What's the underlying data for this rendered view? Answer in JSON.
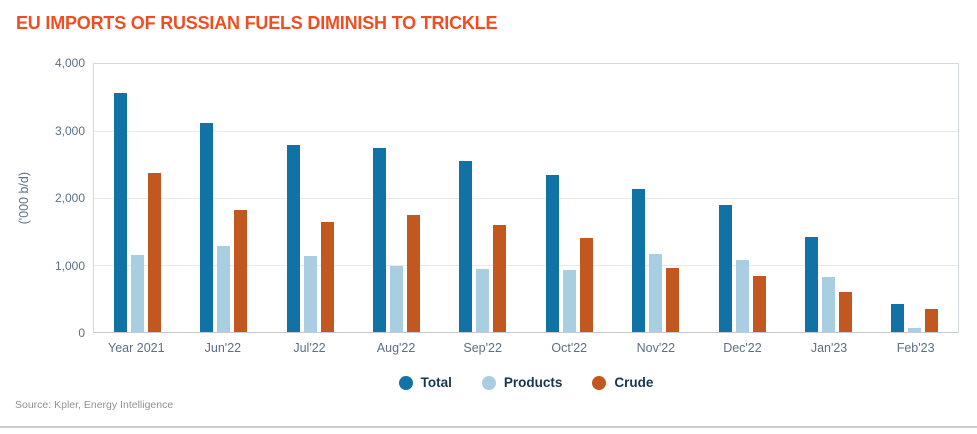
{
  "title": "EU IMPORTS OF RUSSIAN FUELS DIMINISH TO TRICKLE",
  "source": "Source: Kpler, Energy Intelligence",
  "colors": {
    "title": "#f04e22",
    "total": "#1173a5",
    "products": "#a9cee1",
    "crude": "#c2571f",
    "axis_text": "#5b7083",
    "legend_text": "#17374e",
    "gridline": "#e7eaec",
    "axis_line": "#d4d9dd",
    "source_text": "#8d929a",
    "rule": "#cccccc"
  },
  "chart_data": {
    "type": "bar",
    "title": "EU IMPORTS OF RUSSIAN FUELS DIMINISH TO TRICKLE",
    "xlabel": "",
    "ylabel": "('000 b/d)",
    "ylim": [
      0,
      4000
    ],
    "ytick_labels": [
      "4,000",
      "3,000",
      "2,000",
      "1,000",
      "0"
    ],
    "grid": true,
    "legend_position": "bottom",
    "categories": [
      "Year 2021",
      "Jun'22",
      "Jul'22",
      "Aug'22",
      "Sep'22",
      "Oct'22",
      "Nov'22",
      "Dec'22",
      "Jan'23",
      "Feb'23"
    ],
    "series": [
      {
        "name": "Total",
        "color_key": "total",
        "values": [
          3570,
          3120,
          2790,
          2750,
          2550,
          2340,
          2130,
          1900,
          1420,
          420
        ]
      },
      {
        "name": "Products",
        "color_key": "products",
        "values": [
          1150,
          1280,
          1130,
          990,
          940,
          930,
          1160,
          1080,
          820,
          60
        ]
      },
      {
        "name": "Crude",
        "color_key": "crude",
        "values": [
          2380,
          1820,
          1640,
          1740,
          1590,
          1400,
          960,
          830,
          600,
          340
        ]
      }
    ]
  }
}
